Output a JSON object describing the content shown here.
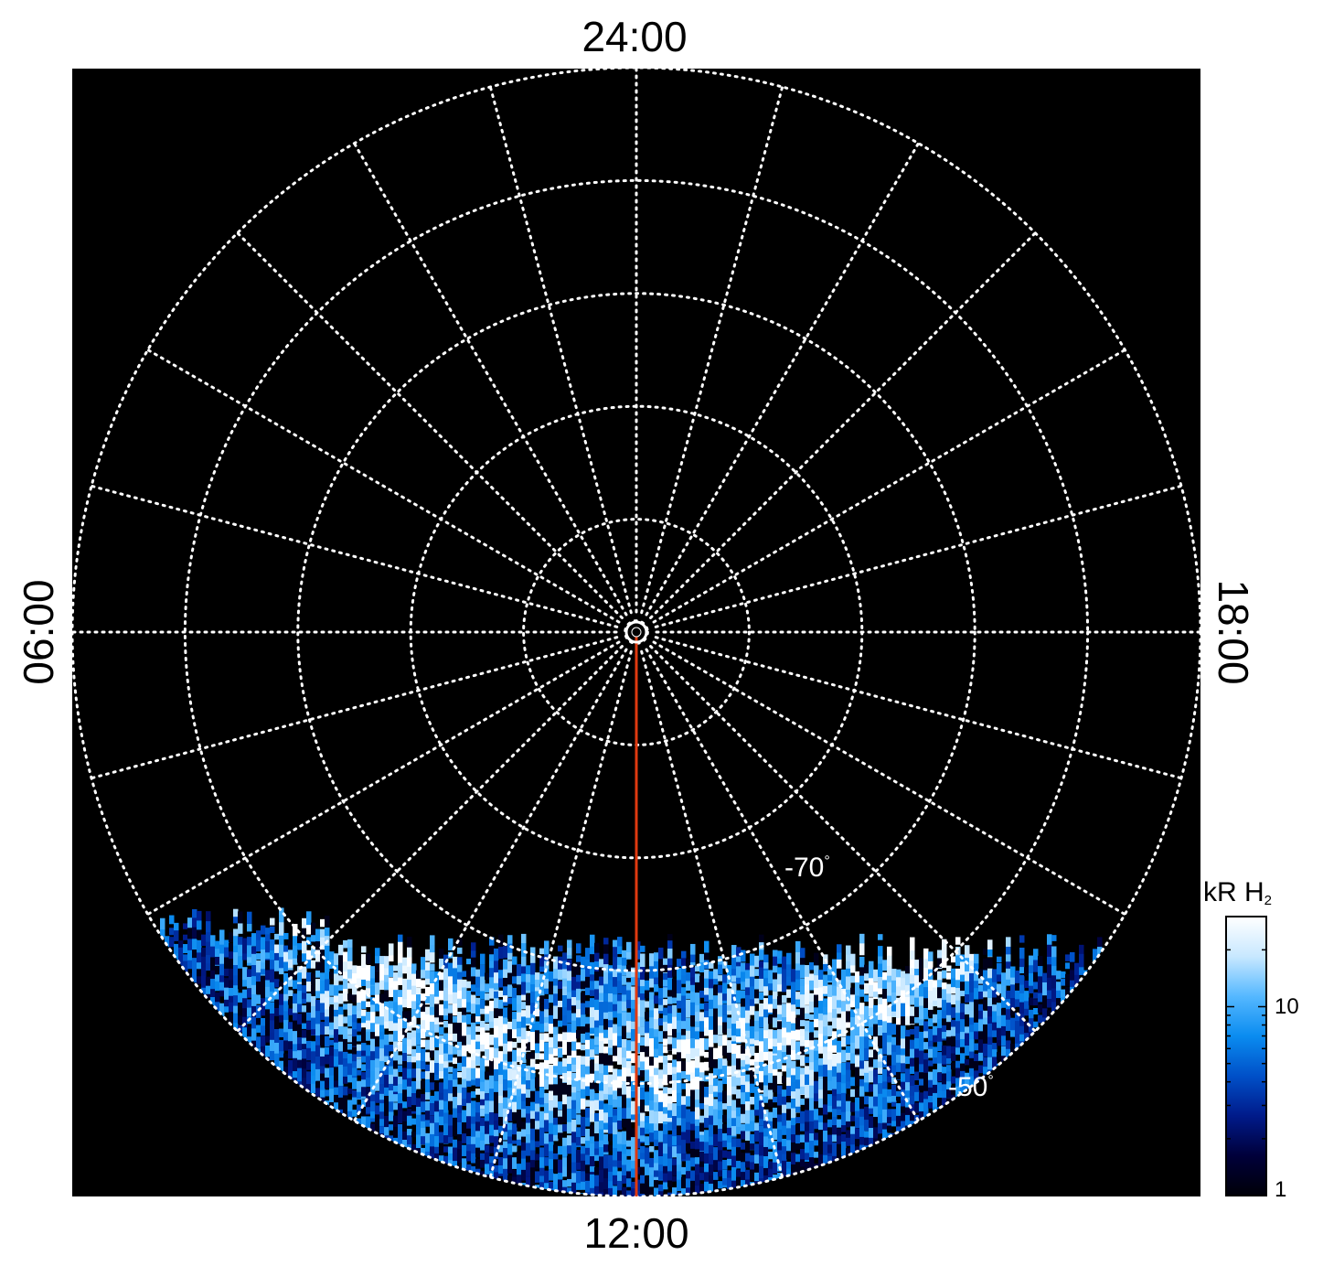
{
  "chart_data": {
    "type": "heatmap",
    "projection": "polar",
    "hemisphere": "south",
    "local_time_labels": {
      "top": "24:00",
      "bottom": "12:00",
      "left": "06:00",
      "right": "18:00"
    },
    "latitude_labels": [
      {
        "text": "-70",
        "lat": -70
      },
      {
        "text": "-50",
        "lat": -50
      }
    ],
    "degree_symbol": "°",
    "grid": {
      "latitude_circles_deg": [
        -89,
        -80,
        -70,
        -60,
        -50,
        -40
      ],
      "meridian_step_hours": 1,
      "style": "dotted",
      "color": "#ffffff"
    },
    "highlight_meridian": {
      "local_time_hours": 12,
      "color": "#e03a10"
    },
    "colorbar": {
      "title": "kR H",
      "subscript": "2",
      "scale": "log",
      "range": [
        1,
        30
      ],
      "tick_labels": [
        "10",
        "1"
      ],
      "tick_values": [
        10,
        1
      ],
      "colors": [
        "#000008",
        "#00003a",
        "#001a8a",
        "#0050c8",
        "#0a8cf0",
        "#55b8ff",
        "#c8e8ff",
        "#ffffff"
      ]
    },
    "observed_region": {
      "description_note": "",
      "colatitude_max_deg": 50,
      "dayside_only": true
    },
    "colors": {
      "background": "#000000",
      "outside": "#ffffff"
    }
  }
}
